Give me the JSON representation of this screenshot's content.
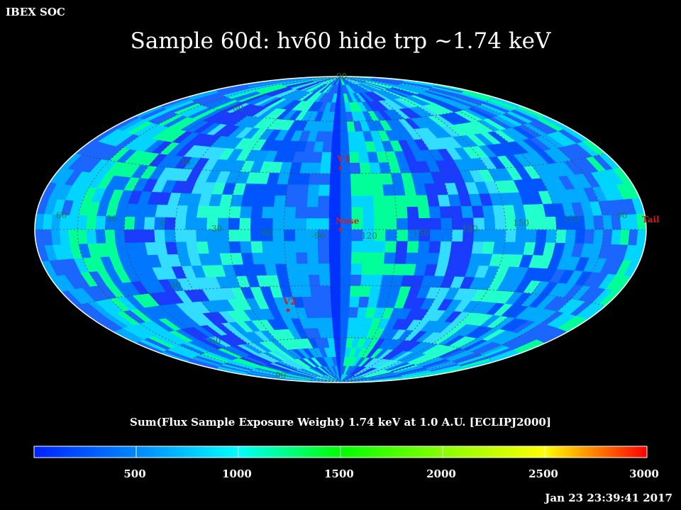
{
  "header": {
    "org": "IBEX SOC",
    "title": "Sample 60d: hv60 hide trp ~1.74 keV"
  },
  "map": {
    "projection": "Aitoff/Hammer (ecliptic J2000)",
    "lat_labels": [
      "90",
      "60",
      "30",
      "-30",
      "-60",
      "-90"
    ],
    "lon_labels": [
      "60",
      "30",
      "0",
      "-30",
      "-60",
      "-90",
      "120",
      "150",
      "180",
      "150",
      "120",
      "90"
    ],
    "markers": {
      "v1": "V1",
      "nose": "Nose",
      "v2": "V2",
      "tail": "Tail"
    },
    "marker_color": "#d01e1e",
    "grid_label_color": "#1a7a4a"
  },
  "colorbar": {
    "caption": "Sum(Flux Sample Exposure Weight)  1.74 keV at 1.0 A.U. [ECLIPJ2000]",
    "ticks": [
      "500",
      "1000",
      "1500",
      "2000",
      "2500",
      "3000"
    ],
    "min": 0,
    "max": 3000,
    "colors": [
      "#0033ff",
      "#00ccff",
      "#00ff66",
      "#44ff00",
      "#ffff00",
      "#ff2200"
    ]
  },
  "footer": {
    "timestamp": "Jan 23 23:39:41 2017"
  }
}
